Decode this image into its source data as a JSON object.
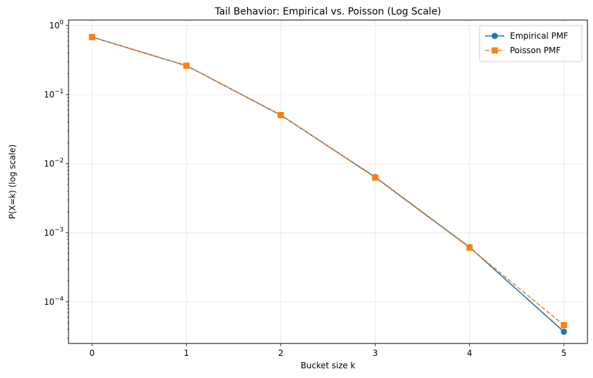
{
  "chart_data": {
    "type": "line",
    "title": "Tail Behavior: Empirical vs. Poisson (Log Scale)",
    "xlabel": "Bucket size k",
    "ylabel": "P(X=k) (log scale)",
    "yscale": "log",
    "x": [
      0,
      1,
      2,
      3,
      4,
      5
    ],
    "xlim": [
      -0.25,
      5.25
    ],
    "ylim": [
      2.5e-05,
      1.2
    ],
    "x_ticks": [
      "0",
      "1",
      "2",
      "3",
      "4",
      "5"
    ],
    "y_ticks": [
      {
        "base": "10",
        "exp": "0",
        "value": 1
      },
      {
        "base": "10",
        "exp": "−1",
        "value": 0.1
      },
      {
        "base": "10",
        "exp": "−2",
        "value": 0.01
      },
      {
        "base": "10",
        "exp": "−3",
        "value": 0.001
      },
      {
        "base": "10",
        "exp": "−4",
        "value": 0.0001
      }
    ],
    "grid": true,
    "legend_position": "top-right",
    "series": [
      {
        "name": "Empirical PMF",
        "color": "#1f77b4",
        "marker": "circle",
        "linestyle": "solid",
        "values": [
          0.68,
          0.262,
          0.0505,
          0.0064,
          0.00062,
          3.7e-05
        ]
      },
      {
        "name": "Poisson PMF",
        "color": "#ff7f0e",
        "marker": "square",
        "linestyle": "dashed",
        "values": [
          0.68,
          0.262,
          0.0505,
          0.0063,
          0.00061,
          4.6e-05
        ]
      }
    ]
  }
}
